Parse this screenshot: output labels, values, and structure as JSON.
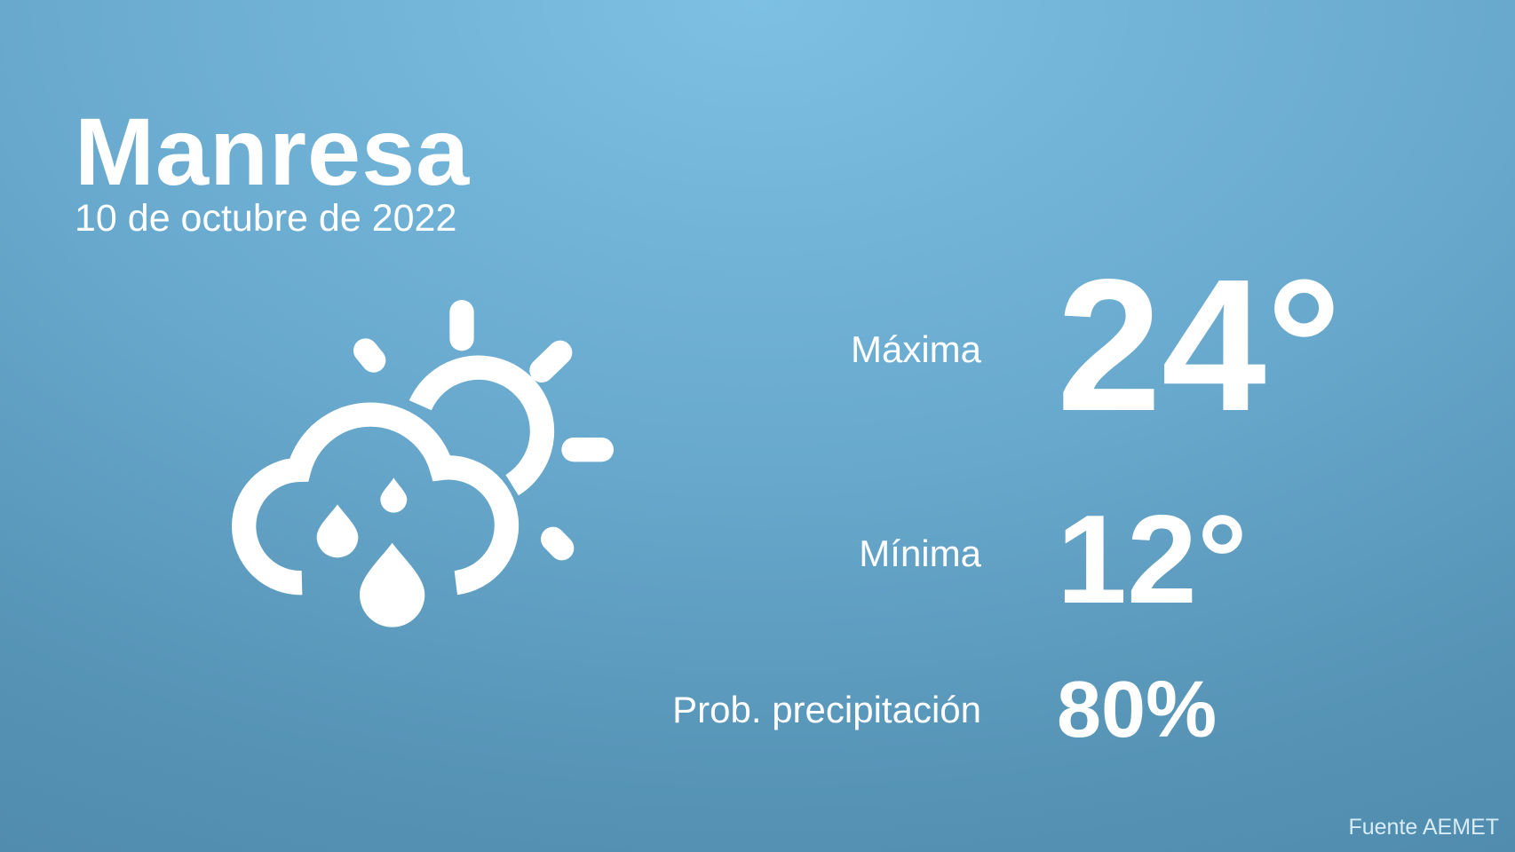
{
  "city": "Manresa",
  "date": "10 de octubre de 2022",
  "icon": "cloud-sun-rain-icon",
  "max": {
    "label": "Máxima",
    "value": "24°"
  },
  "min": {
    "label": "Mínima",
    "value": "12°"
  },
  "precip": {
    "label": "Prob. precipitación",
    "value": "80%"
  },
  "source": "Fuente AEMET",
  "colors": {
    "background_top": "#7dc0e4",
    "background_bottom": "#4f8aab",
    "text": "#ffffff"
  }
}
